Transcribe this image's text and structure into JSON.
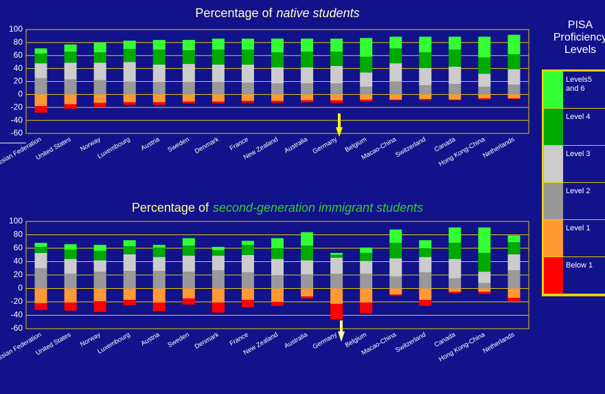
{
  "chart_data": [
    {
      "type": "bar",
      "stacked": true,
      "title": "Percentage of",
      "title_emphasis": "native students",
      "categories": [
        "Russian Federation",
        "United States",
        "Norway",
        "Luxembourg",
        "Austria",
        "Sweden",
        "Denmark",
        "France",
        "New Zealand",
        "Australia",
        "Germany",
        "Belgium",
        "Macao-China",
        "Switzerland",
        "Canada",
        "Hong Kong-China",
        "Netherlands"
      ],
      "series": [
        {
          "name": "Levels5 and 6",
          "color": "#33ff33",
          "values": [
            8,
            11,
            15,
            13,
            15,
            16,
            17,
            17,
            21,
            20,
            20,
            29,
            18,
            24,
            20,
            32,
            30
          ]
        },
        {
          "name": "Level 4",
          "color": "#00aa00",
          "values": [
            15,
            17,
            16,
            20,
            23,
            21,
            23,
            23,
            23,
            24,
            22,
            24,
            23,
            24,
            26,
            25,
            23
          ]
        },
        {
          "name": "Level 3",
          "color": "#cccccc",
          "values": [
            23,
            26,
            27,
            30,
            27,
            28,
            27,
            28,
            25,
            25,
            27,
            22,
            28,
            27,
            27,
            20,
            24
          ]
        },
        {
          "name": "Level 2",
          "color": "#999999",
          "values": [
            25,
            23,
            22,
            20,
            19,
            19,
            19,
            18,
            17,
            17,
            17,
            12,
            20,
            14,
            16,
            12,
            15
          ]
        },
        {
          "name": "Level 1",
          "color": "#ff9933",
          "values": [
            -18,
            -15,
            -13,
            -12,
            -12,
            -11,
            -11,
            -10,
            -10,
            -9,
            -9,
            -8,
            -8,
            -7,
            -8,
            -6,
            -6
          ]
        },
        {
          "name": "Below 1",
          "color": "#ff0000",
          "values": [
            -10,
            -7,
            -6,
            -4,
            -4,
            -3,
            -3,
            -3,
            -3,
            -3,
            -4,
            -3,
            -1,
            -2,
            -1,
            -2,
            -1
          ]
        }
      ],
      "ylim": [
        -60,
        100
      ],
      "yticks": [
        -60,
        -40,
        -20,
        0,
        20,
        40,
        60,
        80,
        100
      ],
      "grid": true
    },
    {
      "type": "bar",
      "stacked": true,
      "title": "Percentage of",
      "title_emphasis": "second-generation immigrant students",
      "categories": [
        "Russian Federation",
        "United States",
        "Norway",
        "Luxembourg",
        "Austria",
        "Sweden",
        "Denmark",
        "France",
        "New Zealand",
        "Australia",
        "Germany",
        "Belgium",
        "Macao-China",
        "Switzerland",
        "Canada",
        "Hong Kong-China",
        "Netherlands"
      ],
      "series": [
        {
          "color": "#33ff33",
          "values": [
            6,
            8,
            9,
            9,
            4,
            11,
            5,
            6,
            15,
            20,
            3,
            8,
            20,
            12,
            23,
            38,
            10
          ]
        },
        {
          "color": "#00aa00",
          "values": [
            9,
            14,
            14,
            12,
            14,
            15,
            8,
            15,
            16,
            22,
            4,
            12,
            23,
            13,
            24,
            28,
            18
          ]
        },
        {
          "color": "#cccccc",
          "values": [
            23,
            22,
            17,
            25,
            21,
            24,
            22,
            26,
            24,
            21,
            24,
            19,
            27,
            23,
            29,
            17,
            24
          ]
        },
        {
          "color": "#999999",
          "values": [
            30,
            22,
            25,
            26,
            26,
            25,
            27,
            24,
            20,
            21,
            22,
            22,
            18,
            24,
            15,
            8,
            27
          ]
        },
        {
          "color": "#ff9933",
          "values": [
            -22,
            -21,
            -19,
            -17,
            -21,
            -15,
            -21,
            -17,
            -20,
            -12,
            -23,
            -21,
            -9,
            -17,
            -5,
            -5,
            -14
          ]
        },
        {
          "color": "#ff0000",
          "values": [
            -10,
            -12,
            -16,
            -8,
            -13,
            -9,
            -15,
            -11,
            -6,
            -3,
            -23,
            -16,
            -2,
            -9,
            -2,
            -3,
            -5
          ]
        }
      ],
      "ylim": [
        -60,
        100
      ],
      "yticks": [
        -60,
        -40,
        -20,
        0,
        20,
        40,
        60,
        80,
        100
      ],
      "grid": true
    }
  ],
  "legend": {
    "title": "PISA Proficiency Levels"
  }
}
